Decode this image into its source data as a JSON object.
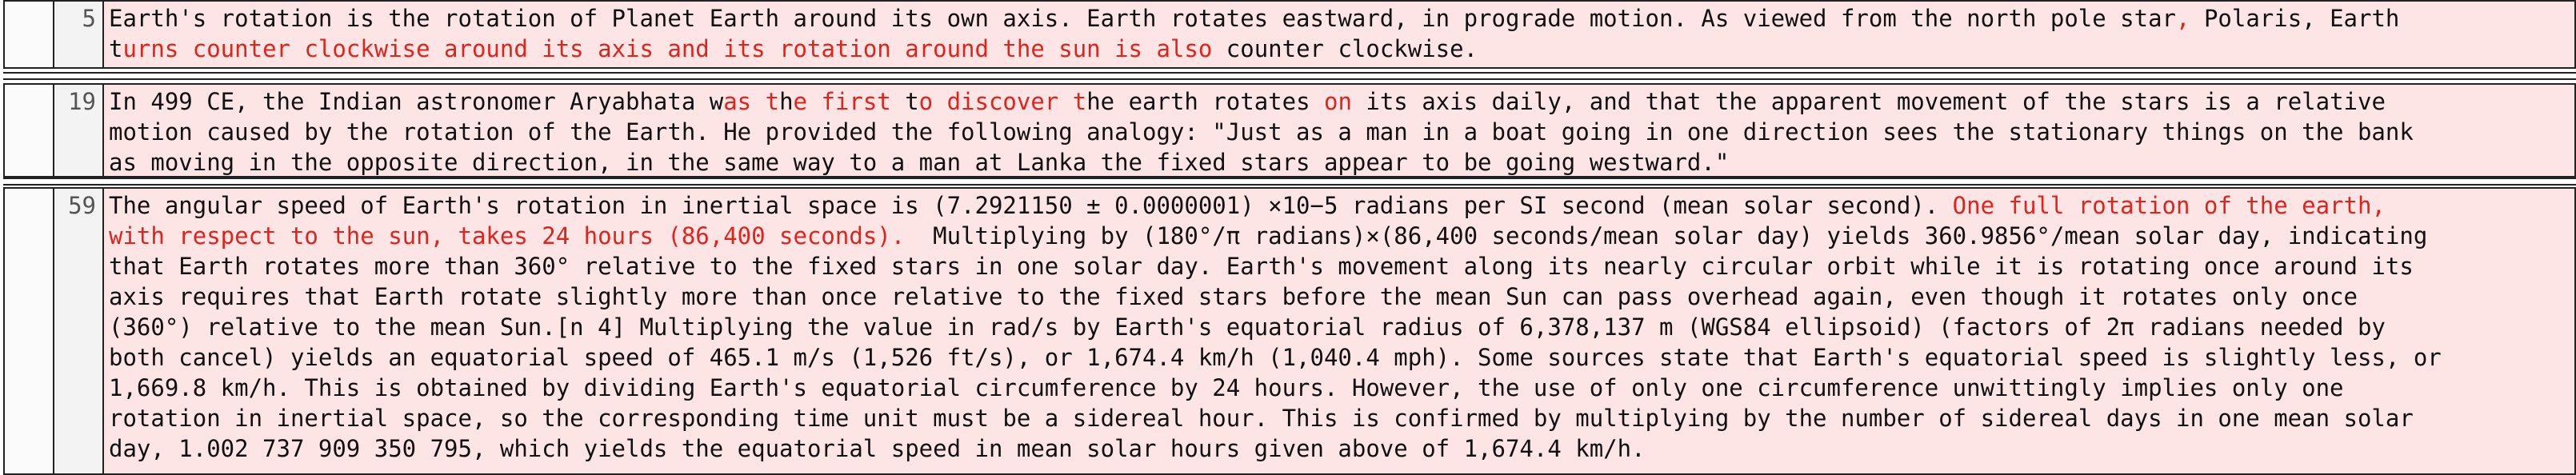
{
  "rows": [
    {
      "line": "5",
      "segments": [
        {
          "t": "Earth's rotation is the rotation of Planet Earth around its own axis. Earth rotates eastward, in prograde motion. As viewed from the north pole star",
          "h": false
        },
        {
          "t": ",",
          "h": true
        },
        {
          "t": " Polaris, Earth\nt",
          "h": false
        },
        {
          "t": "urns counter clockwise around its axis and its rotation around the sun is also",
          "h": true
        },
        {
          "t": " counter clockwise.",
          "h": false
        }
      ]
    },
    {
      "line": "19",
      "segments": [
        {
          "t": "In 499 CE, the Indian astronomer Aryabhata w",
          "h": false
        },
        {
          "t": "as t",
          "h": true
        },
        {
          "t": "h",
          "h": false
        },
        {
          "t": "e first",
          "h": true
        },
        {
          "t": " t",
          "h": false
        },
        {
          "t": "o discover t",
          "h": true
        },
        {
          "t": "he earth rotates ",
          "h": false
        },
        {
          "t": "on",
          "h": true
        },
        {
          "t": " its axis daily, and that the apparent movement of the stars is a relative\nmotion caused by the rotation of the Earth. He provided the following analogy: \"Just as a man in a boat going in one direction sees the stationary things on the bank\nas moving in the opposite direction, in the same way to a man at Lanka the fixed stars appear to be going westward.\"",
          "h": false
        }
      ]
    },
    {
      "line": "59",
      "segments": [
        {
          "t": "The angular speed of Earth's rotation in inertial space is (7.2921150 ± 0.0000001) ×10−5 radians per SI second (mean solar second). ",
          "h": false
        },
        {
          "t": "One full rotation of the earth,\nwith respect to the sun, takes 24 hours (86,400 seconds).",
          "h": true
        },
        {
          "t": "  Multiplying by (180°/π radians)×(86,400 seconds/mean solar day) yields 360.9856°/mean solar day, indicating\nthat Earth rotates more than 360° relative to the fixed stars in one solar day. Earth's movement along its nearly circular orbit while it is rotating once around its\naxis requires that Earth rotate slightly more than once relative to the fixed stars before the mean Sun can pass overhead again, even though it rotates only once\n(360°) relative to the mean Sun.[n 4] Multiplying the value in rad/s by Earth's equatorial radius of 6,378,137 m (WGS84 ellipsoid) (factors of 2π radians needed by\nboth cancel) yields an equatorial speed of 465.1 m/s (1,526 ft/s), or 1,674.4 km/h (1,040.4 mph). Some sources state that Earth's equatorial speed is slightly less, or\n1,669.8 km/h. This is obtained by dividing Earth's equatorial circumference by 24 hours. However, the use of only one circumference unwittingly implies only one\nrotation in inertial space, so the corresponding time unit must be a sidereal hour. This is confirmed by multiplying by the number of sidereal days in one mean solar\nday, 1.002 737 909 350 795, which yields the equatorial speed in mean solar hours given above of 1,674.4 km/h.",
          "h": false
        }
      ]
    }
  ],
  "colors": {
    "removed_background": "#fde5e5",
    "highlight_text": "#e0241c",
    "normal_text": "#111111"
  }
}
